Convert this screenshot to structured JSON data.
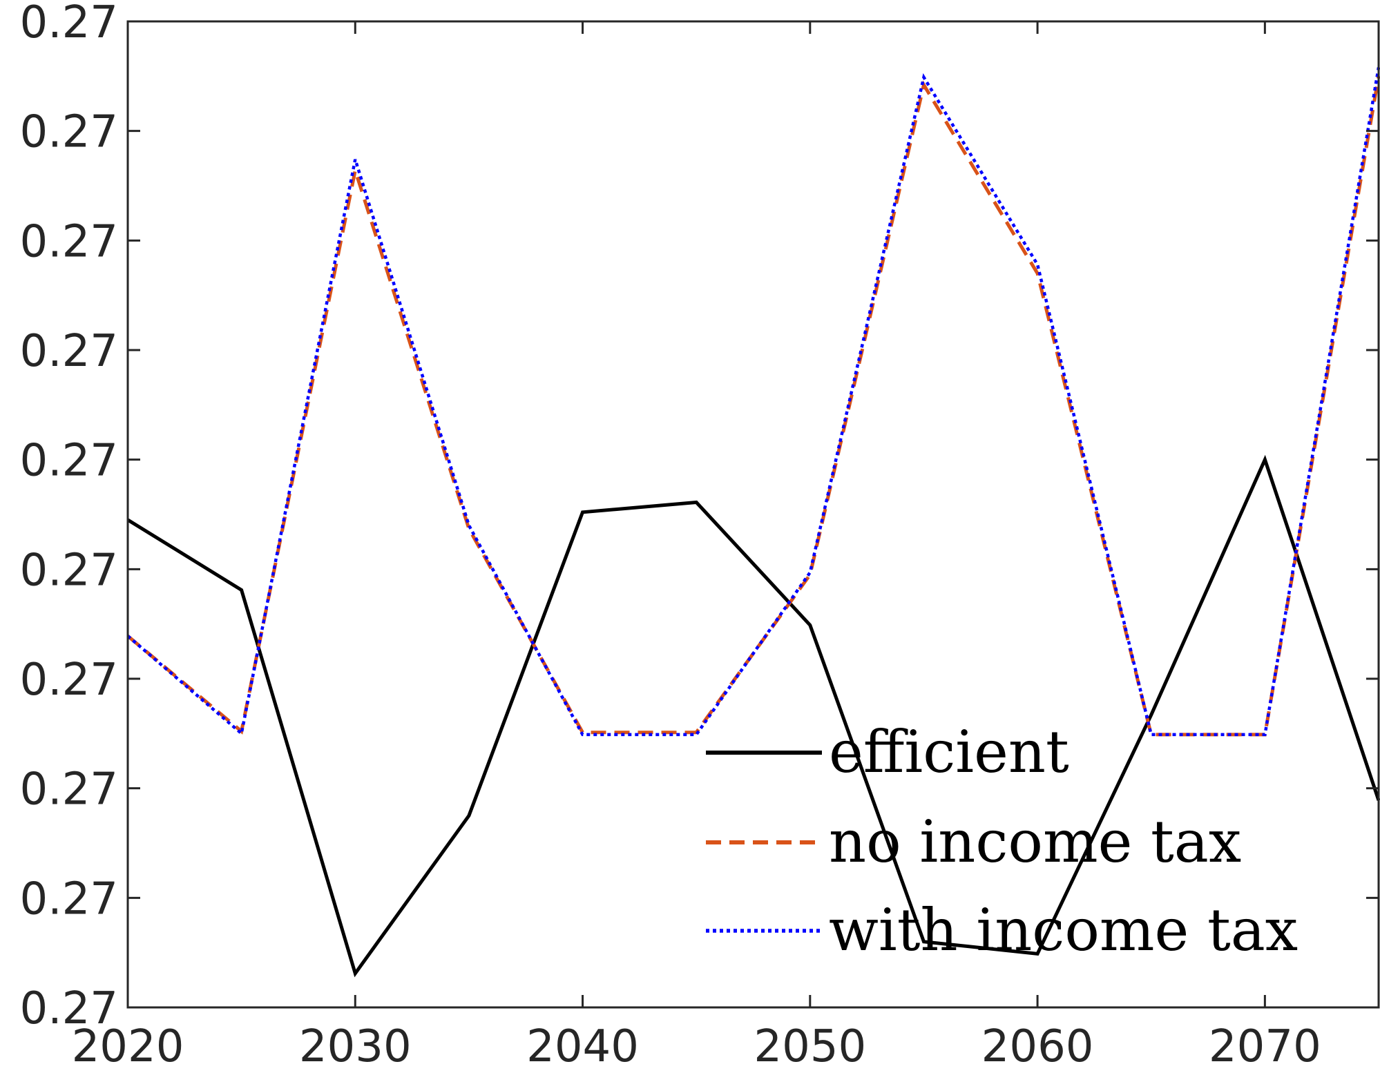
{
  "chart_data": {
    "type": "line",
    "title": "",
    "xlabel": "",
    "ylabel": "",
    "xlim": [
      2020,
      2075
    ],
    "ylim": [
      0,
      9
    ],
    "x_ticks": [
      2020,
      2030,
      2040,
      2050,
      2060,
      2070
    ],
    "x_tick_labels": [
      "2020",
      "2030",
      "2040",
      "2050",
      "2060",
      "2070"
    ],
    "y_ticks": [
      0,
      1,
      2,
      3,
      4,
      5,
      6,
      7,
      8,
      9
    ],
    "y_tick_labels": [
      "0.27",
      "0.27",
      "0.27",
      "0.27",
      "0.27",
      "0.27",
      "0.27",
      "0.27",
      "0.27",
      "0.27"
    ],
    "y_values_note": "tick labels all print 0.27; y values are in relative tick units (0 = bottom tick, 9 = top tick)",
    "grid": false,
    "legend_position": "bottom-right",
    "x": [
      2020,
      2025,
      2030,
      2035,
      2040,
      2045,
      2050,
      2055,
      2060,
      2065,
      2070,
      2075
    ],
    "series": [
      {
        "name": "efficient",
        "color": "#000000",
        "style": "solid",
        "values": [
          4.45,
          3.81,
          0.31,
          1.75,
          4.52,
          4.61,
          3.49,
          0.6,
          0.49,
          2.67,
          5.0,
          1.89
        ]
      },
      {
        "name": "no income tax",
        "color": "#D95319",
        "style": "dashed",
        "values": [
          3.39,
          2.52,
          7.64,
          4.37,
          2.51,
          2.51,
          3.95,
          8.42,
          6.7,
          2.49,
          2.49,
          8.5
        ]
      },
      {
        "name": "with income tax",
        "color": "#0000FF",
        "style": "dotted",
        "values": [
          3.39,
          2.5,
          7.74,
          4.4,
          2.49,
          2.49,
          3.97,
          8.49,
          6.78,
          2.49,
          2.49,
          8.58
        ]
      }
    ]
  }
}
